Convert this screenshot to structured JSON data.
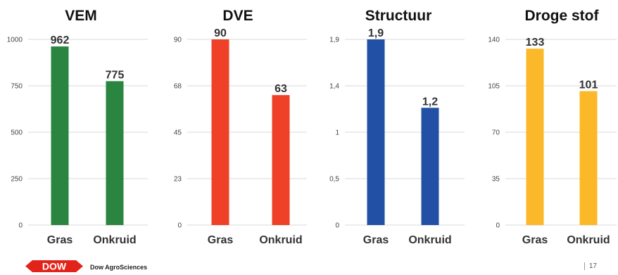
{
  "chart_data": [
    {
      "type": "bar",
      "title": "VEM",
      "categories": [
        "Gras",
        "Onkruid"
      ],
      "values": [
        962,
        775
      ],
      "value_labels": [
        "962",
        "775"
      ],
      "ylim": [
        0,
        1000
      ],
      "yticks": [
        0,
        250,
        500,
        750,
        1000
      ],
      "ytick_labels": [
        "0",
        "250",
        "500",
        "750",
        "1000"
      ],
      "color": "#2a8540",
      "grid": true
    },
    {
      "type": "bar",
      "title": "DVE",
      "categories": [
        "Gras",
        "Onkruid"
      ],
      "values": [
        90,
        63
      ],
      "value_labels": [
        "90",
        "63"
      ],
      "ylim": [
        0,
        90
      ],
      "yticks": [
        0,
        22.5,
        45,
        67.5,
        90
      ],
      "ytick_labels": [
        "0",
        "23",
        "45",
        "68",
        "90"
      ],
      "color": "#ee4127",
      "grid": true
    },
    {
      "type": "bar",
      "title": "Structuur",
      "categories": [
        "Gras",
        "Onkruid"
      ],
      "values": [
        1.9,
        1.2
      ],
      "value_labels": [
        "1,9",
        "1,2"
      ],
      "ylim": [
        0,
        1.9
      ],
      "yticks": [
        0,
        0.475,
        0.95,
        1.425,
        1.9
      ],
      "ytick_labels": [
        "0",
        "0,5",
        "1",
        "1,4",
        "1,9"
      ],
      "color": "#2250a4",
      "grid": true
    },
    {
      "type": "bar",
      "title": "Droge stof",
      "categories": [
        "Gras",
        "Onkruid"
      ],
      "values": [
        133,
        101
      ],
      "value_labels": [
        "133",
        "101"
      ],
      "ylim": [
        0,
        140
      ],
      "yticks": [
        0,
        35,
        70,
        105,
        140
      ],
      "ytick_labels": [
        "0",
        "35",
        "70",
        "105",
        "140"
      ],
      "color": "#fbb829",
      "grid": true
    }
  ],
  "footer": {
    "logo_text": "DOW",
    "brand": "Dow AgroSciences",
    "page": "17",
    "logo_color": "#e2231a"
  }
}
